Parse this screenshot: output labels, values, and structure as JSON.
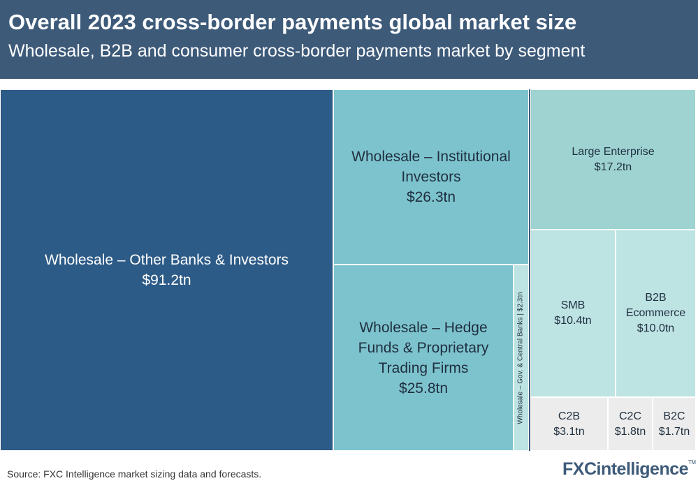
{
  "header": {
    "title": "Overall 2023 cross-border payments global market size",
    "subtitle": "Wholesale, B2B and consumer cross-border payments market by segment"
  },
  "chart_data": {
    "type": "treemap",
    "unit": "$tn",
    "title": "Overall 2023 cross-border payments global market size",
    "subtitle": "Wholesale, B2B and consumer cross-border payments market by segment",
    "groups": [
      "Wholesale",
      "B2B",
      "Consumer"
    ],
    "segments": [
      {
        "id": "other-banks",
        "group": "Wholesale",
        "label": "Wholesale – Other Banks & Investors",
        "value": 91.2,
        "value_label": "$91.2tn",
        "color": "#2d5b87",
        "text_color": "#ffffff"
      },
      {
        "id": "institutional",
        "group": "Wholesale",
        "label": "Wholesale – Institutional Investors",
        "value": 26.3,
        "value_label": "$26.3tn",
        "color": "#7dc3cd",
        "text_color": "#1f2f3f"
      },
      {
        "id": "hedge-funds",
        "group": "Wholesale",
        "label": "Wholesale – Hedge Funds & Proprietary Trading Firms",
        "value": 25.8,
        "value_label": "$25.8tn",
        "color": "#7dc3cd",
        "text_color": "#1f2f3f"
      },
      {
        "id": "gov-central",
        "group": "Wholesale",
        "label": "Wholesale – Gov. & Central Banks | $2.3tn",
        "value": 2.3,
        "value_label": "",
        "color": "#bde3e3",
        "text_color": "#1f2f3f"
      },
      {
        "id": "large-enterprise",
        "group": "B2B",
        "label": "Large Enterprise",
        "value": 17.2,
        "value_label": "$17.2tn",
        "color": "#9ed3d2",
        "text_color": "#1f2f3f"
      },
      {
        "id": "smb",
        "group": "B2B",
        "label": "SMB",
        "value": 10.4,
        "value_label": "$10.4tn",
        "color": "#bde3e3",
        "text_color": "#1f2f3f"
      },
      {
        "id": "b2b-ecommerce",
        "group": "B2B",
        "label": "B2B Ecommerce",
        "value": 10.0,
        "value_label": "$10.0tn",
        "color": "#bde3e3",
        "text_color": "#1f2f3f"
      },
      {
        "id": "c2b",
        "group": "Consumer",
        "label": "C2B",
        "value": 3.1,
        "value_label": "$3.1tn",
        "color": "#ececec",
        "text_color": "#1f2f3f"
      },
      {
        "id": "c2c",
        "group": "Consumer",
        "label": "C2C",
        "value": 1.8,
        "value_label": "$1.8tn",
        "color": "#ececec",
        "text_color": "#1f2f3f"
      },
      {
        "id": "b2c",
        "group": "Consumer",
        "label": "B2C",
        "value": 1.7,
        "value_label": "$1.7tn",
        "color": "#ececec",
        "text_color": "#1f2f3f"
      }
    ]
  },
  "footer": {
    "source": "Source: FXC Intelligence market sizing data and forecasts.",
    "logo": "FXCintelligence",
    "logo_mark": "TM"
  }
}
